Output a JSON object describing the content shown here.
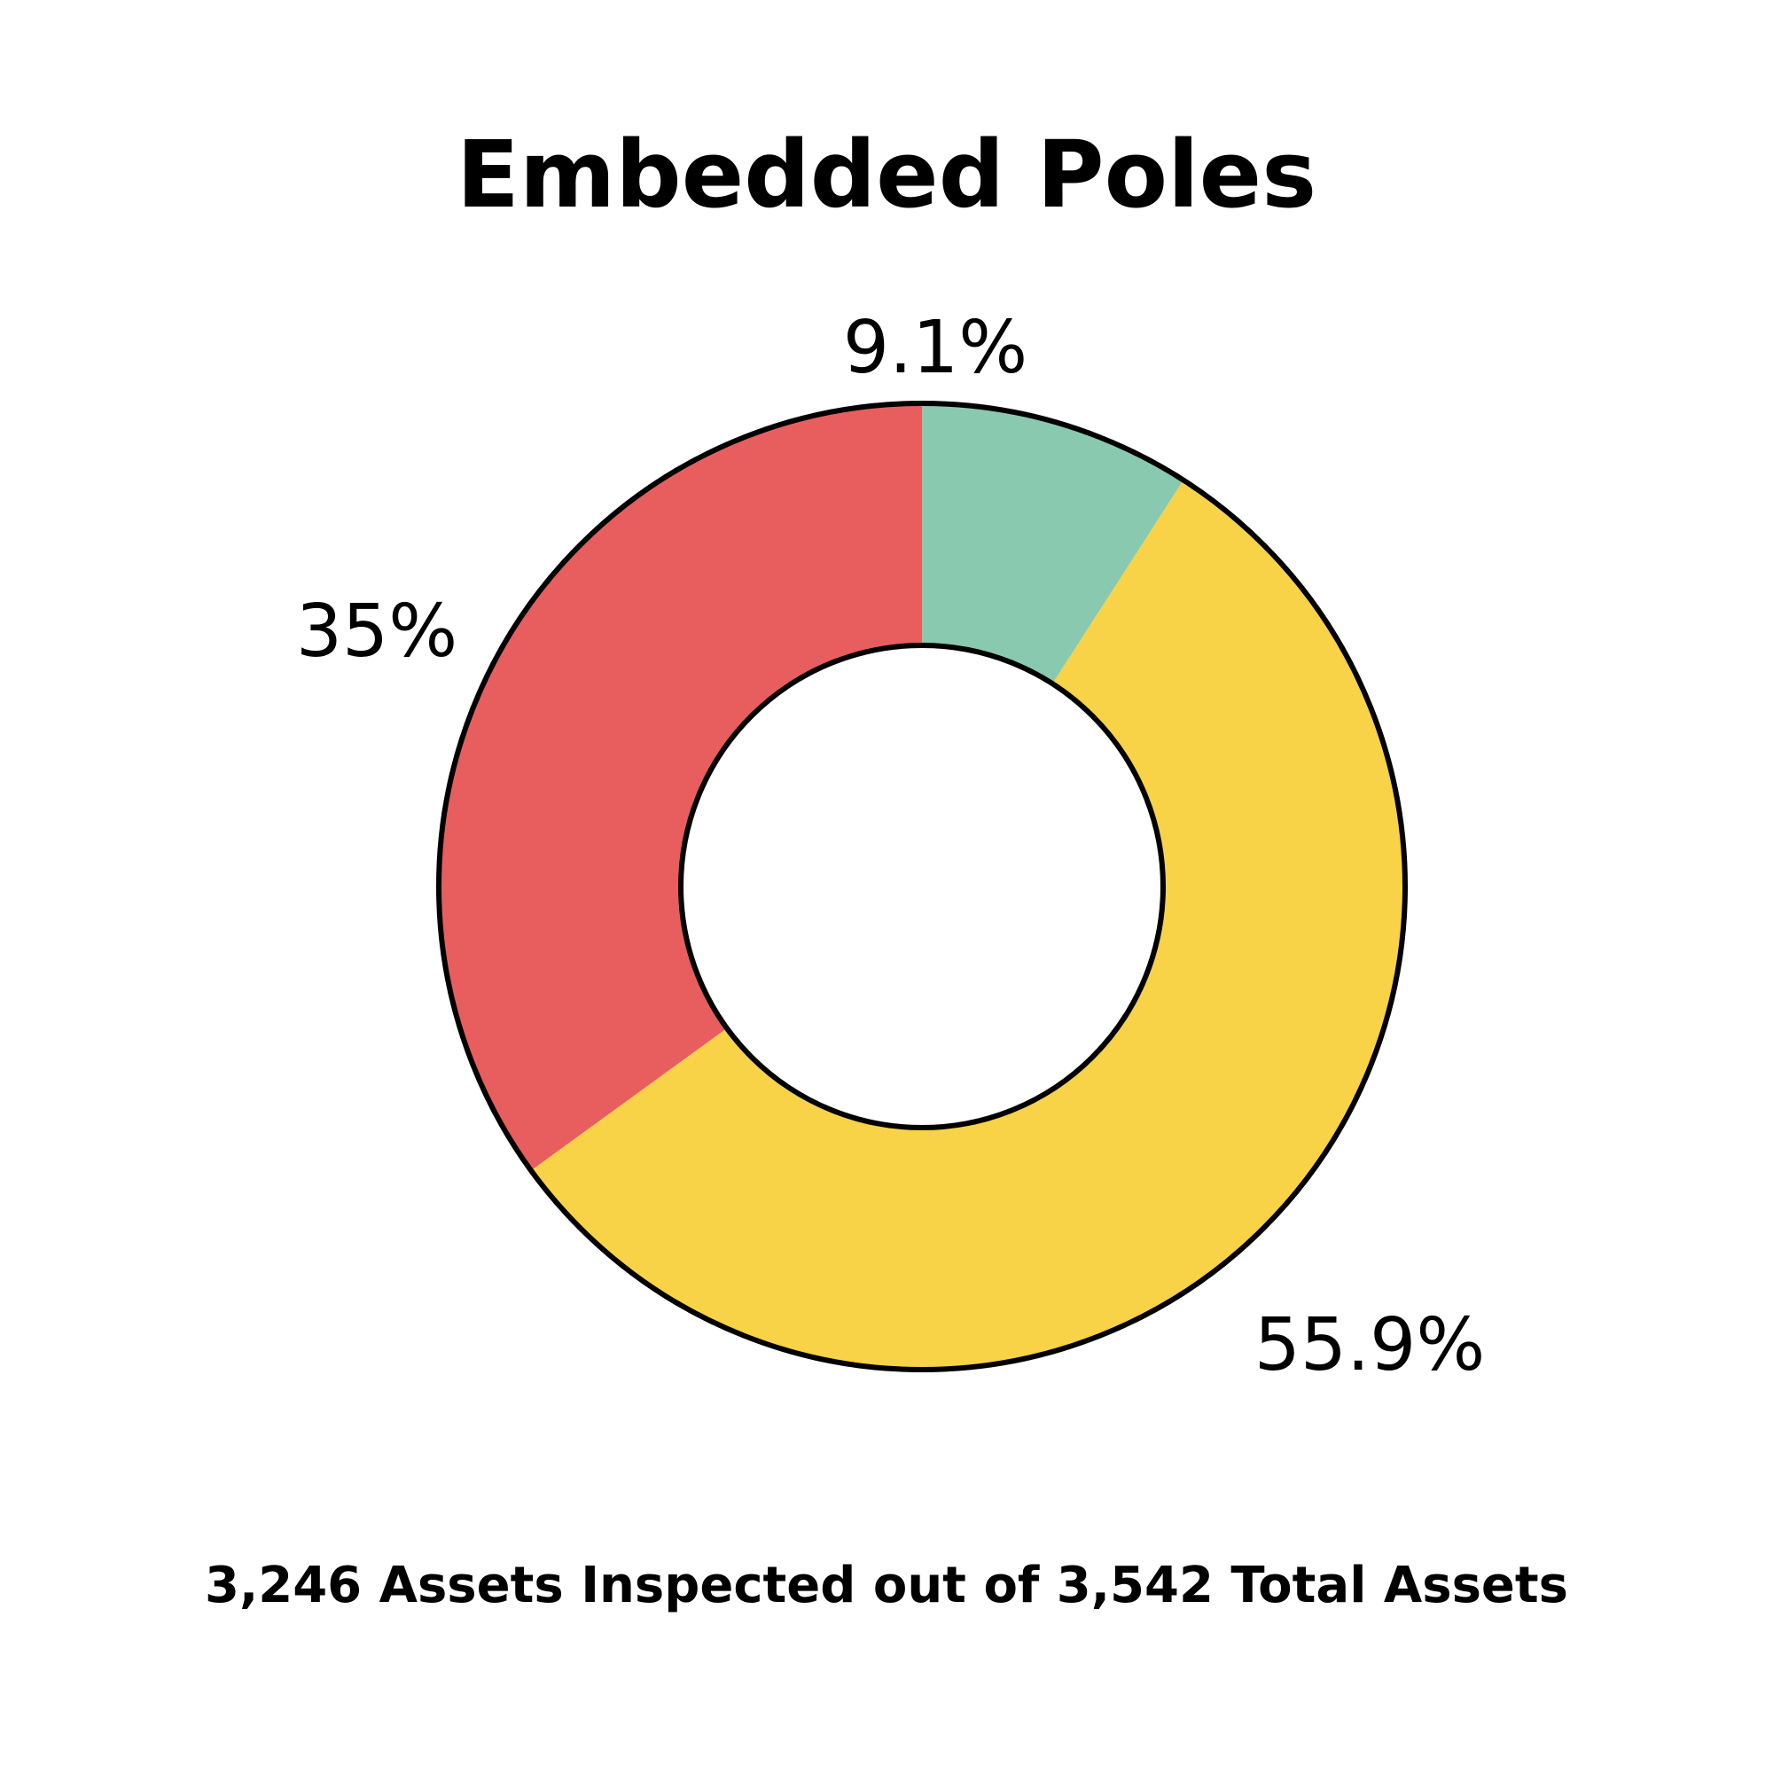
{
  "chart_data": {
    "type": "pie",
    "donut": true,
    "title": "Embedded Poles",
    "slices": [
      {
        "label": "9.1%",
        "value": 9.1,
        "color": "#88C9B0"
      },
      {
        "label": "55.9%",
        "value": 55.9,
        "color": "#F8D247"
      },
      {
        "label": "35%",
        "value": 35.0,
        "color": "#E85E5E"
      }
    ],
    "start_angle_deg": 0,
    "direction": "clockwise",
    "outline_color": "#000000",
    "legend": "none",
    "footer": "3,246 Assets Inspected out of 3,542 Total Assets"
  }
}
